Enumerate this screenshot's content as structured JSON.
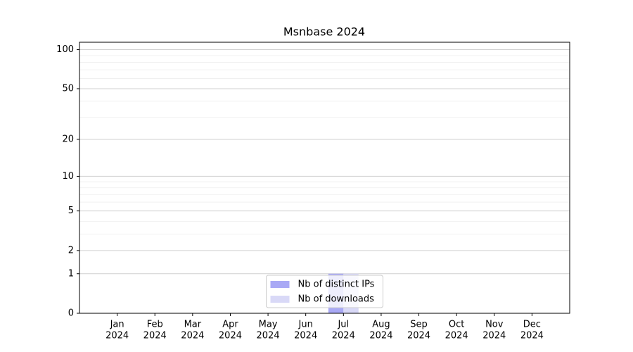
{
  "chart_data": {
    "type": "bar",
    "title": "Msnbase 2024",
    "categories": [
      [
        "Jan",
        "2024"
      ],
      [
        "Feb",
        "2024"
      ],
      [
        "Mar",
        "2024"
      ],
      [
        "Apr",
        "2024"
      ],
      [
        "May",
        "2024"
      ],
      [
        "Jun",
        "2024"
      ],
      [
        "Jul",
        "2024"
      ],
      [
        "Aug",
        "2024"
      ],
      [
        "Sep",
        "2024"
      ],
      [
        "Oct",
        "2024"
      ],
      [
        "Nov",
        "2024"
      ],
      [
        "Dec",
        "2024"
      ]
    ],
    "series": [
      {
        "name": "Nb of distinct IPs",
        "color": "#a9a9f5",
        "values": [
          0,
          0,
          0,
          0,
          0,
          0,
          1,
          0,
          0,
          0,
          0,
          0
        ]
      },
      {
        "name": "Nb of downloads",
        "color": "#d9d9f7",
        "values": [
          0,
          0,
          0,
          0,
          0,
          0,
          1,
          0,
          0,
          0,
          0,
          0
        ]
      }
    ],
    "y_scale": "log1p",
    "ylim": [
      0,
      114
    ],
    "yticks": [
      0,
      1,
      2,
      5,
      10,
      20,
      50,
      100
    ],
    "y_minor_ticks": [
      3,
      4,
      6,
      7,
      8,
      9,
      30,
      40,
      60,
      70,
      80,
      90
    ],
    "grid": true,
    "legend": "lower center"
  }
}
